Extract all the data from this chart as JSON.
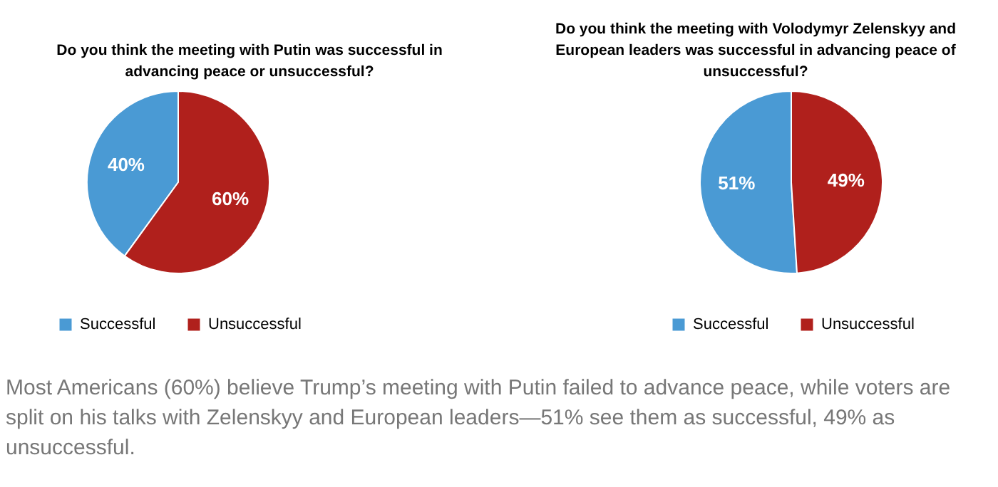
{
  "chart_data": [
    {
      "type": "pie",
      "title": "Do you think the meeting with Putin was successful in advancing peace or unsuccessful?",
      "categories": [
        "Successful",
        "Unsuccessful"
      ],
      "values": [
        40,
        60
      ],
      "value_labels": [
        "40%",
        "60%"
      ],
      "colors": [
        "#4a9ad4",
        "#b0201c"
      ],
      "legend": "bottom left"
    },
    {
      "type": "pie",
      "title": "Do you think the meeting with Volodymyr Zelenskyy and European leaders was successful in advancing peace of unsuccessful?",
      "categories": [
        "Successful",
        "Unsuccessful"
      ],
      "values": [
        51,
        49
      ],
      "value_labels": [
        "51%",
        "49%"
      ],
      "colors": [
        "#4a9ad4",
        "#b0201c"
      ],
      "legend": "bottom left"
    },
    {
      "type": "other",
      "annotations": [
        "Most Americans (60%) believe Trump’s meeting with Putin failed to advance peace, while voters are split on his talks with Zelenskyy and European leaders—51% see them as successful, 49% as unsuccessful."
      ]
    }
  ]
}
